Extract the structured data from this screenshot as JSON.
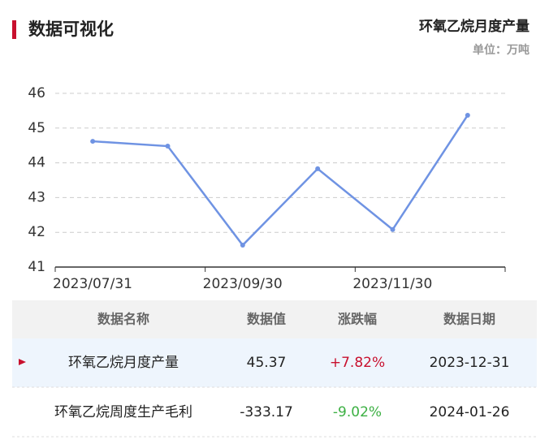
{
  "header": {
    "title": "数据可视化"
  },
  "chart_data": {
    "type": "line",
    "title": "环氧乙烷月度产量",
    "subtitle": "单位：万吨",
    "categories": [
      "2023/07/31",
      null,
      "2023/09/30",
      null,
      "2023/11/30",
      null
    ],
    "values": [
      44.62,
      44.48,
      41.63,
      43.83,
      42.08,
      45.37
    ],
    "color": "#6f93e3",
    "ylim": [
      41,
      46
    ],
    "yticks": [
      41,
      42,
      43,
      44,
      45,
      46
    ],
    "grid": true
  },
  "table": {
    "columns": [
      "数据名称",
      "数据值",
      "涨跌幅",
      "数据日期"
    ],
    "rows": [
      [
        "环氧乙烷月度产量",
        "45.37",
        "+7.82%",
        "2023-12-31"
      ],
      [
        "环氧乙烷周度生产毛利",
        "-333.17",
        "-9.02%",
        "2024-01-26"
      ]
    ]
  }
}
